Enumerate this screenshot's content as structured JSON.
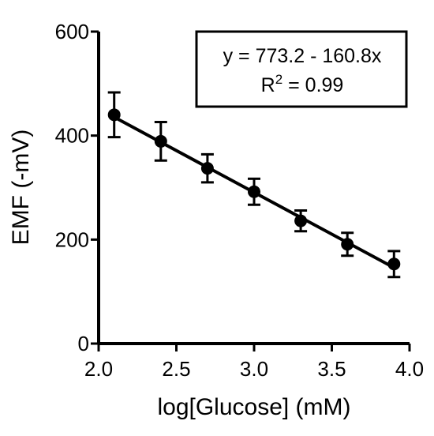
{
  "chart_data": {
    "type": "scatter",
    "xlabel": "log[Glucose] (mM)",
    "ylabel": "EMF  (-mV)",
    "xlim": [
      2.0,
      4.0
    ],
    "ylim": [
      0,
      600
    ],
    "x_ticks": [
      "2.0",
      "2.5",
      "3.0",
      "3.5",
      "4.0"
    ],
    "y_ticks": [
      "0",
      "200",
      "400",
      "600"
    ],
    "x_tick_values": [
      2.0,
      2.5,
      3.0,
      3.5,
      4.0
    ],
    "y_tick_values": [
      0,
      200,
      400,
      600
    ],
    "points": [
      {
        "x": 2.1,
        "y": 440,
        "err": 43
      },
      {
        "x": 2.4,
        "y": 389,
        "err": 37
      },
      {
        "x": 2.7,
        "y": 337,
        "err": 27
      },
      {
        "x": 3.0,
        "y": 292,
        "err": 25
      },
      {
        "x": 3.3,
        "y": 236,
        "err": 20
      },
      {
        "x": 3.6,
        "y": 191,
        "err": 22
      },
      {
        "x": 3.9,
        "y": 153,
        "err": 25
      }
    ],
    "fit": {
      "intercept": 773.2,
      "slope": -160.8,
      "x_range": [
        2.1,
        3.9
      ]
    },
    "annotation": {
      "equation": "y = 773.2 - 160.8x",
      "r2_base": "R",
      "r2_sup": "2",
      "r2_value": " = 0.99"
    },
    "grid": false
  }
}
